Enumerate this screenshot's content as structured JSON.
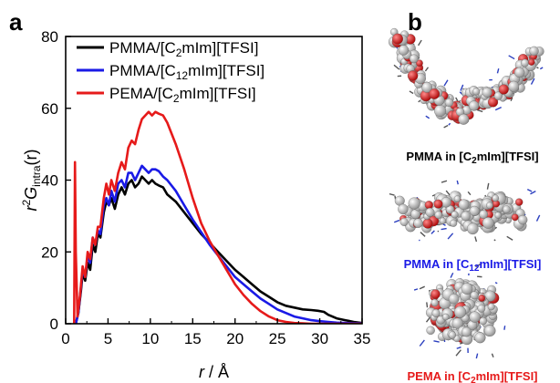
{
  "panel_a_label": "a",
  "panel_b_label": "b",
  "chart_data": {
    "type": "line",
    "xlabel": "r / Å",
    "xlabel_italic": "r",
    "xlabel_unit": " / Å",
    "ylabel_parts": {
      "pre": "r",
      "sup": "2",
      "main": "G",
      "sub": "intra",
      "arg": "(r)"
    },
    "xlim": [
      0,
      35
    ],
    "ylim": [
      0,
      80
    ],
    "xticks": [
      0,
      5,
      10,
      15,
      20,
      25,
      30,
      35
    ],
    "yticks": [
      0,
      20,
      40,
      60,
      80
    ],
    "grid": false,
    "legend_position": "top-right",
    "series": [
      {
        "name": "PMMA/[C2mIm][TFSI]",
        "name_parts": {
          "pre": "PMMA/[C",
          "sub": "2",
          "post": "mIm][TFSI]"
        },
        "color": "#000000",
        "x": [
          1.2,
          1.5,
          1.8,
          2.0,
          2.3,
          2.6,
          2.9,
          3.2,
          3.5,
          3.8,
          4.1,
          4.5,
          4.8,
          5.1,
          5.4,
          5.8,
          6.2,
          6.6,
          7.0,
          7.4,
          7.8,
          8.2,
          8.6,
          9.0,
          9.4,
          9.8,
          10.2,
          10.6,
          11.0,
          11.5,
          12,
          13,
          14,
          15,
          16,
          17,
          18,
          19,
          20,
          21,
          22,
          23,
          24,
          25,
          26,
          27,
          28,
          29,
          29.8,
          30.5,
          31,
          32,
          33,
          34,
          35
        ],
        "y": [
          0,
          3,
          9,
          14,
          12,
          17,
          15,
          22,
          20,
          25,
          24,
          31,
          34,
          33,
          35,
          32,
          36,
          38,
          36,
          39,
          40,
          38,
          39,
          41,
          40,
          39,
          40,
          39,
          38.5,
          38,
          36,
          34,
          31,
          28,
          25,
          22.5,
          20,
          17.5,
          15,
          13,
          11,
          9,
          7.5,
          6,
          5,
          4.5,
          4,
          3.8,
          3.6,
          3.3,
          2.5,
          1.5,
          1,
          0.5,
          0.2
        ]
      },
      {
        "name": "PMMA/[C12mIm][TFSI]",
        "name_parts": {
          "pre": "PMMA/[C",
          "sub": "12",
          "post": "mIm][TFSI]"
        },
        "color": "#1a1ae6",
        "x": [
          1.2,
          1.5,
          1.8,
          2.0,
          2.3,
          2.6,
          2.9,
          3.2,
          3.5,
          3.8,
          4.1,
          4.5,
          4.8,
          5.1,
          5.4,
          5.8,
          6.2,
          6.6,
          7.0,
          7.4,
          7.8,
          8.2,
          8.6,
          9.0,
          9.4,
          9.8,
          10.2,
          10.6,
          11.0,
          11.5,
          12,
          13,
          14,
          15,
          16,
          17,
          18,
          19,
          20,
          21,
          22,
          23,
          24,
          25,
          26,
          27,
          28,
          29,
          30,
          31,
          32,
          33,
          34,
          35
        ],
        "y": [
          0,
          3,
          10,
          15,
          13,
          19,
          17,
          24,
          22,
          26,
          25,
          33,
          35,
          33,
          37,
          34,
          39,
          40,
          38,
          42,
          42,
          40,
          42,
          44,
          43,
          42,
          43,
          43,
          42.5,
          41,
          40,
          37,
          33,
          29,
          25.5,
          22,
          19,
          16,
          13,
          11,
          9,
          7,
          5.5,
          4,
          3,
          2,
          1.5,
          1,
          0.7,
          0.5,
          0.3,
          0.2,
          0.1,
          0.1
        ]
      },
      {
        "name": "PEMA/[C2mIm][TFSI]",
        "name_parts": {
          "pre": "PEMA/[C",
          "sub": "2",
          "post": "mIm][TFSI]"
        },
        "color": "#e61a1a",
        "x": [
          1.0,
          1.1,
          1.2,
          1.4,
          1.7,
          2.0,
          2.3,
          2.6,
          2.9,
          3.2,
          3.5,
          3.8,
          4.1,
          4.5,
          4.8,
          5.1,
          5.4,
          5.8,
          6.2,
          6.6,
          7.0,
          7.4,
          7.8,
          8.2,
          8.6,
          9.0,
          9.4,
          9.8,
          10.2,
          10.6,
          11.0,
          11.5,
          12,
          13,
          14,
          15,
          16,
          17,
          18,
          19,
          20,
          21,
          22,
          23,
          24,
          25,
          26,
          27,
          28,
          29,
          30,
          31,
          32,
          33,
          34,
          35
        ],
        "y": [
          0,
          45,
          20,
          2,
          8,
          16,
          13,
          20,
          18,
          24,
          22,
          27,
          27,
          35,
          39,
          36,
          40,
          37,
          42,
          45,
          43,
          49,
          51,
          50,
          54,
          57,
          58,
          59,
          58,
          59,
          58.5,
          58,
          56,
          50,
          43,
          35,
          28,
          23,
          19,
          15,
          11,
          8,
          5.5,
          3.5,
          2,
          1,
          0.5,
          0.2,
          0.1,
          0,
          0,
          0,
          0,
          0,
          0,
          0
        ]
      }
    ]
  },
  "panel_b": {
    "captions": [
      {
        "pre": "PMMA in [C",
        "sub": "2",
        "post": "mIm][TFSI]",
        "color": "#000000"
      },
      {
        "pre": "PMMA in [C",
        "sub": "12",
        "post": "mIm][TFSI]",
        "color": "#1a1ae6"
      },
      {
        "pre": "PEMA in [C",
        "sub": "2",
        "post": "mIm][TFSI]",
        "color": "#e61a1a"
      }
    ]
  }
}
